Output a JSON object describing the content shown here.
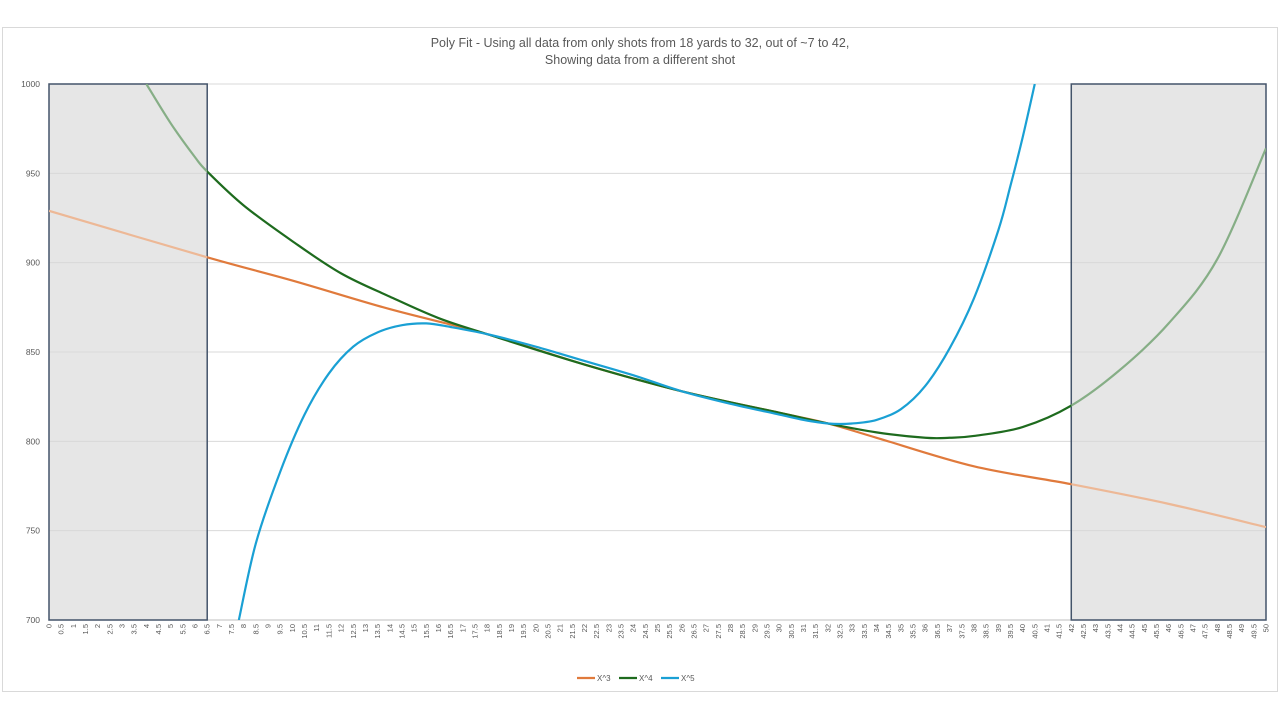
{
  "chart_data": {
    "type": "line",
    "title_line1": "Poly Fit - Using  all data from only shots from 18 yards to 32, out of ~7 to 42,",
    "title_line2": "Showing data from a different shot",
    "xlabel": "",
    "ylabel": "",
    "xlim": [
      0,
      50
    ],
    "ylim": [
      700,
      1000
    ],
    "x_step": 0.5,
    "y_ticks": [
      700,
      750,
      800,
      850,
      900,
      950,
      1000
    ],
    "grid": "horizontal",
    "legend_position": "bottom",
    "shaded_regions": [
      {
        "x_from": 0,
        "x_to": 6.5
      },
      {
        "x_from": 42,
        "x_to": 50
      }
    ],
    "series": [
      {
        "name": "X^3",
        "color": "#E07A3C",
        "faded_color": "#EDB896",
        "points": [
          [
            0,
            929
          ],
          [
            6.5,
            903
          ],
          [
            10,
            890
          ],
          [
            14,
            874
          ],
          [
            18,
            860
          ],
          [
            22,
            843
          ],
          [
            26,
            828
          ],
          [
            30,
            816
          ],
          [
            32,
            810
          ],
          [
            34,
            802
          ],
          [
            38,
            786
          ],
          [
            42,
            776
          ],
          [
            46,
            765
          ],
          [
            50,
            752
          ]
        ]
      },
      {
        "name": "X^4",
        "color": "#1E6B1E",
        "faded_color": "#86AE86",
        "points": [
          [
            4,
            1000
          ],
          [
            5,
            978
          ],
          [
            6,
            959
          ],
          [
            6.5,
            951
          ],
          [
            8,
            932
          ],
          [
            10,
            912
          ],
          [
            12,
            894
          ],
          [
            14,
            881
          ],
          [
            16,
            869
          ],
          [
            18,
            860
          ],
          [
            22,
            843
          ],
          [
            26,
            828
          ],
          [
            30,
            816
          ],
          [
            32,
            810
          ],
          [
            34,
            805
          ],
          [
            36,
            802
          ],
          [
            37,
            802
          ],
          [
            38,
            803
          ],
          [
            40,
            808
          ],
          [
            42,
            820
          ],
          [
            44,
            840
          ],
          [
            46,
            866
          ],
          [
            48,
            902
          ],
          [
            50,
            964
          ]
        ]
      },
      {
        "name": "X^5",
        "color": "#1AA0D4",
        "faded_color": "#1AA0D4",
        "points": [
          [
            7.8,
            700
          ],
          [
            8.5,
            743
          ],
          [
            9.5,
            783
          ],
          [
            10.5,
            815
          ],
          [
            11.5,
            838
          ],
          [
            12.5,
            853
          ],
          [
            13.5,
            861
          ],
          [
            14.5,
            865
          ],
          [
            15.5,
            866
          ],
          [
            16.5,
            864
          ],
          [
            18,
            860
          ],
          [
            20,
            853
          ],
          [
            22,
            845
          ],
          [
            24,
            837
          ],
          [
            26,
            828
          ],
          [
            28,
            821
          ],
          [
            30,
            815
          ],
          [
            31,
            812
          ],
          [
            32,
            810
          ],
          [
            33,
            810
          ],
          [
            34,
            812
          ],
          [
            35,
            818
          ],
          [
            36,
            831
          ],
          [
            37,
            852
          ],
          [
            38,
            880
          ],
          [
            39,
            918
          ],
          [
            39.5,
            943
          ],
          [
            40,
            970
          ],
          [
            40.5,
            1000
          ]
        ]
      }
    ]
  }
}
